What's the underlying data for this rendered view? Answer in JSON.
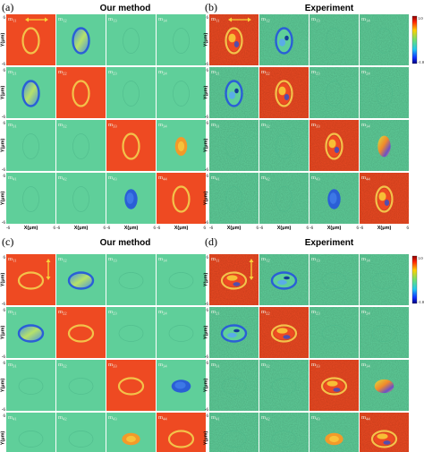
{
  "panels": [
    {
      "letter": "(a)",
      "title": "Our method",
      "mode": "sim",
      "orientation": "v",
      "cbar": false,
      "arrow": "h",
      "tiles": [
        [
          "on",
          "ring-blue",
          "off",
          "off"
        ],
        [
          "ring-blue",
          "on",
          "off",
          "off"
        ],
        [
          "off",
          "off",
          "on",
          "blob-orange"
        ],
        [
          "off",
          "off",
          "blob-blue",
          "on"
        ]
      ]
    },
    {
      "letter": "(b)",
      "title": "Experiment",
      "mode": "exp",
      "orientation": "v",
      "cbar": true,
      "arrow": "h",
      "tiles": [
        [
          "on",
          "ring-blue",
          "off",
          "off"
        ],
        [
          "ring-blue",
          "on",
          "off",
          "off"
        ],
        [
          "off",
          "off",
          "on",
          "blob-mix"
        ],
        [
          "off",
          "off",
          "blob-blue",
          "on"
        ]
      ]
    },
    {
      "letter": "(c)",
      "title": "Our method",
      "mode": "sim",
      "orientation": "h",
      "cbar": false,
      "arrow": "v",
      "tiles": [
        [
          "on",
          "ring-blue",
          "off",
          "off"
        ],
        [
          "ring-blue",
          "on",
          "off",
          "off"
        ],
        [
          "off",
          "off",
          "on",
          "blob-blue"
        ],
        [
          "off",
          "off",
          "blob-orange",
          "on"
        ]
      ]
    },
    {
      "letter": "(d)",
      "title": "Experiment",
      "mode": "exp",
      "orientation": "h",
      "cbar": true,
      "arrow": "v",
      "tiles": [
        [
          "on",
          "ring-blue",
          "off",
          "off"
        ],
        [
          "ring-blue",
          "on",
          "off",
          "off"
        ],
        [
          "off",
          "off",
          "on",
          "blob-mix"
        ],
        [
          "off",
          "off",
          "blob-orange",
          "on"
        ]
      ]
    }
  ],
  "element_labels": [
    [
      "m",
      "11"
    ],
    [
      "m",
      "12"
    ],
    [
      "m",
      "13"
    ],
    [
      "m",
      "14"
    ],
    [
      "m",
      "21"
    ],
    [
      "m",
      "22"
    ],
    [
      "m",
      "23"
    ],
    [
      "m",
      "24"
    ],
    [
      "m",
      "31"
    ],
    [
      "m",
      "32"
    ],
    [
      "m",
      "33"
    ],
    [
      "m",
      "34"
    ],
    [
      "m",
      "41"
    ],
    [
      "m",
      "42"
    ],
    [
      "m",
      "43"
    ],
    [
      "m",
      "44"
    ]
  ],
  "axes": {
    "ylabel": "Y(μm)",
    "xlabel": "X(μm)",
    "ytick_top": "6",
    "ytick_bottom": "-6",
    "xtick_left": "-6",
    "xtick_right": "6"
  },
  "colorbar": {
    "max": "1.0",
    "min": "-1.0"
  },
  "colors": {
    "background": "#5fcf9a",
    "high": "#ee4a22",
    "ring": "#f3c24a",
    "blue": "#2a5fd6",
    "lightblue": "#5aa9f0",
    "green": "#9de04a",
    "label": "#f0f4e8"
  }
}
